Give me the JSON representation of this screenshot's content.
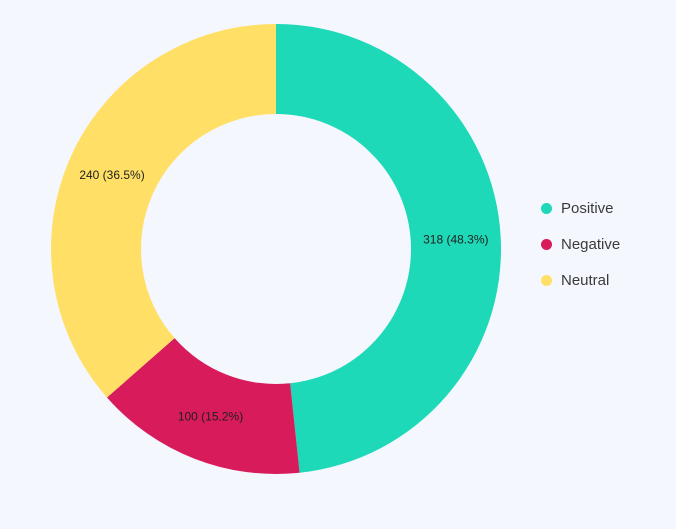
{
  "chart_data": {
    "type": "pie",
    "donut": true,
    "title": "",
    "categories": [
      "Positive",
      "Negative",
      "Neutral"
    ],
    "values": [
      318,
      100,
      240
    ],
    "percentages": [
      48.3,
      15.2,
      36.5
    ],
    "data_labels": [
      "318 (48.3%)",
      "100 (15.2%)",
      "240 (36.5%)"
    ],
    "colors": [
      "#1dd9b8",
      "#d81b5a",
      "#ffdf65"
    ],
    "legend_position": "right"
  }
}
